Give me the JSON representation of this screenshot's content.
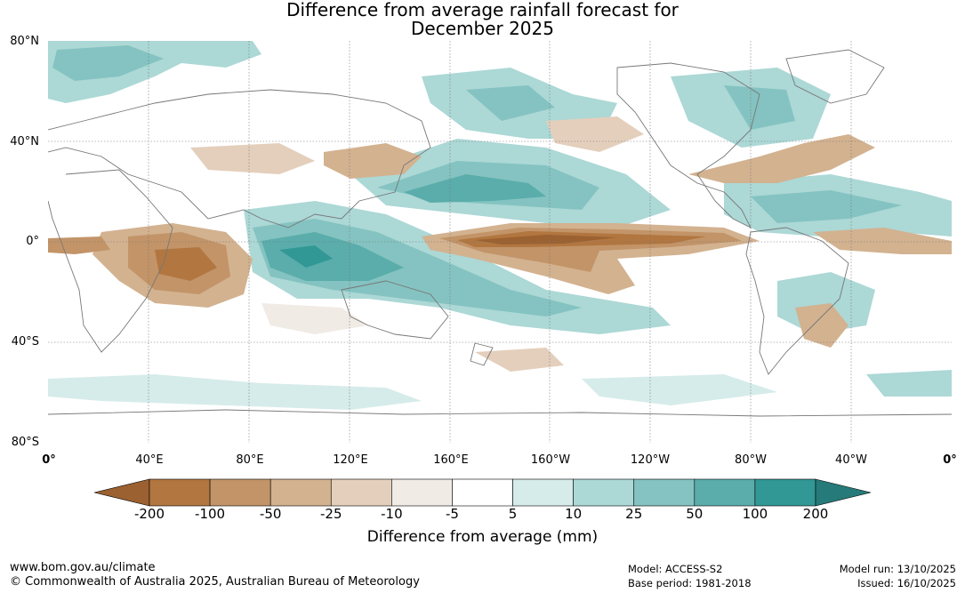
{
  "title": {
    "line1": "Difference from average rainfall forecast for",
    "line2": "December 2025"
  },
  "axes": {
    "lat_labels": [
      "80°N",
      "40°N",
      "0°",
      "40°S",
      "80°S"
    ],
    "lon_labels": [
      "0°",
      "40°E",
      "80°E",
      "120°E",
      "160°E",
      "160°W",
      "120°W",
      "80°W",
      "40°W",
      "0°"
    ]
  },
  "legend": {
    "ticks": [
      "-200",
      "-100",
      "-50",
      "-25",
      "-10",
      "-5",
      "5",
      "10",
      "25",
      "50",
      "100",
      "200"
    ],
    "colors": [
      "#9b6130",
      "#b27640",
      "#c29468",
      "#d3b290",
      "#e4cfbc",
      "#f1ebe6",
      "#ffffff",
      "#d6ecea",
      "#acd8d6",
      "#84c3c1",
      "#5aadab",
      "#329895",
      "#267a79"
    ],
    "label": "Difference from average (mm)"
  },
  "footer": {
    "url": "www.bom.gov.au/climate",
    "copyright": "© Commonwealth of Australia 2025, Australian Bureau of Meteorology",
    "model": "Model: ACCESS-S2",
    "base_period": "Base period: 1981-2018",
    "model_run": "Model run: 13/10/2025",
    "issued": "Issued: 16/10/2025"
  }
}
